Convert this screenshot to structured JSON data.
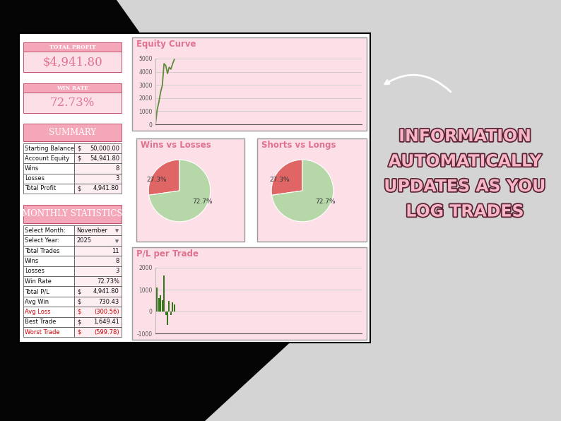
{
  "kpis": [
    {
      "title": "TOTAL PROFIT",
      "value": "$4,941.80"
    },
    {
      "title": "WIN RATE",
      "value": "72.73%"
    }
  ],
  "summary": {
    "title": "SUMMARY",
    "rows": [
      [
        "Starting Balance",
        "$",
        "50,000.00"
      ],
      [
        "Account Equity",
        "$",
        "54,941.80"
      ],
      [
        "Wins",
        "8"
      ],
      [
        "Losses",
        "3"
      ],
      [
        "Total Profit",
        "$",
        "4,941.80"
      ]
    ]
  },
  "monthly_statistics": {
    "title": "MONTHLY STATISTICS",
    "rows": [
      [
        "Select Month:",
        "November"
      ],
      [
        "Select Year:",
        "2025"
      ],
      [
        "Total Trades",
        "11"
      ],
      [
        "Wins",
        "8"
      ],
      [
        "Losses",
        "3"
      ],
      [
        "Win Rate",
        "72.73%"
      ],
      [
        "Total P/L",
        "$",
        "4,941.80"
      ],
      [
        "Avg Win",
        "$",
        "730.43"
      ],
      [
        "Avg Loss",
        "$",
        "(300.56)"
      ],
      [
        "Best Trade",
        "$",
        "1,649.41"
      ],
      [
        "Worst Trade",
        "$",
        "(599.78)"
      ]
    ]
  },
  "chart_data": [
    {
      "type": "line",
      "title": "Equity Curve",
      "x": [
        0,
        1,
        2,
        3,
        4,
        5,
        6,
        7,
        8,
        9,
        10,
        11
      ],
      "values": [
        0,
        1100,
        1700,
        2450,
        2970,
        4619,
        4468,
        3868,
        4348,
        4198,
        4618,
        4941.8
      ],
      "color": "#5e8b3a",
      "xlim": [
        0,
        120
      ],
      "ylim": [
        0,
        5000
      ],
      "yticks": [
        0,
        1000,
        2000,
        3000,
        4000,
        5000
      ],
      "grid": true,
      "tick_labels": "y"
    },
    {
      "type": "pie",
      "title": "Wins vs Losses",
      "values": [
        27.3,
        72.7
      ],
      "value_labels": [
        "27.3%",
        "72.7%"
      ],
      "colors": [
        "#e06666",
        "#b6d7a8"
      ]
    },
    {
      "type": "pie",
      "title": "Shorts vs Longs",
      "values": [
        27.3,
        72.7
      ],
      "value_labels": [
        "27.3%",
        "72.7%"
      ],
      "colors": [
        "#e06666",
        "#b6d7a8"
      ]
    },
    {
      "type": "bar",
      "title": "P/L per Trade",
      "x": [
        1,
        2,
        3,
        4,
        5,
        6,
        7,
        8,
        9,
        10,
        11
      ],
      "values": [
        1100,
        600,
        750,
        520,
        1649.41,
        -151.2,
        -599.78,
        480,
        -150.7,
        420,
        324.03
      ],
      "color": "#38761d",
      "xlim": [
        0,
        120
      ],
      "ylim": [
        -1000,
        2000
      ],
      "yticks": [
        -1000,
        0,
        1000,
        2000
      ],
      "grid": true,
      "tick_labels": "y"
    }
  ],
  "caption": {
    "lines": [
      "INFORMATION",
      "AUTOMATICALLY",
      "UPDATES AS YOU",
      "LOG TRADES"
    ]
  }
}
